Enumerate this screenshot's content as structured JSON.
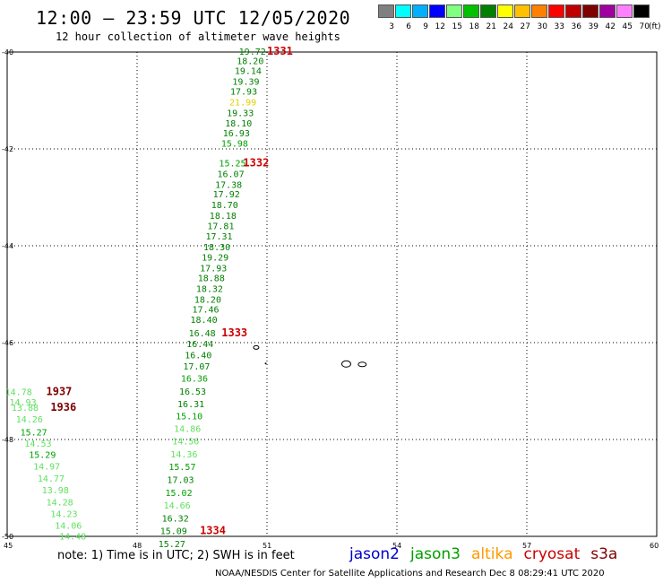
{
  "header": {
    "title": "12:00 – 23:59 UTC 12/05/2020",
    "subtitle": "12 hour collection of altimeter wave heights"
  },
  "scale": {
    "unit": "(ft)",
    "bins": [
      {
        "label": "3",
        "color": "#808080"
      },
      {
        "label": "6",
        "color": "#00ffff"
      },
      {
        "label": "9",
        "color": "#00b0ff"
      },
      {
        "label": "12",
        "color": "#0000ff"
      },
      {
        "label": "15",
        "color": "#80ff80"
      },
      {
        "label": "18",
        "color": "#00c000"
      },
      {
        "label": "21",
        "color": "#008000"
      },
      {
        "label": "24",
        "color": "#ffff00"
      },
      {
        "label": "27",
        "color": "#ffc000"
      },
      {
        "label": "30",
        "color": "#ff8000"
      },
      {
        "label": "33",
        "color": "#ff0000"
      },
      {
        "label": "36",
        "color": "#c00000"
      },
      {
        "label": "39",
        "color": "#800000"
      },
      {
        "label": "42",
        "color": "#a000a0"
      },
      {
        "label": "45",
        "color": "#ff80ff"
      },
      {
        "label": "70",
        "color": "#000000"
      }
    ]
  },
  "axes": {
    "lat_labels": [
      "-40",
      "-42",
      "-44",
      "-46",
      "-48",
      "-50"
    ],
    "lon_labels": [
      "45",
      "48",
      "51",
      "54",
      "57",
      "60"
    ],
    "lon_range": [
      45,
      60
    ],
    "lat_range": [
      -40,
      -50
    ]
  },
  "tracks": [
    {
      "name": "1331",
      "label_color": "#cc0000",
      "label_lon": 51.0,
      "label_lat": -39.98,
      "points": [
        {
          "v": "19.72",
          "lon": 50.6,
          "lat": -39.98,
          "c": "#008000"
        },
        {
          "v": "18.20",
          "lon": 50.55,
          "lat": -40.18,
          "c": "#008000"
        },
        {
          "v": "19.14",
          "lon": 50.5,
          "lat": -40.38,
          "c": "#008000"
        },
        {
          "v": "19.39",
          "lon": 50.45,
          "lat": -40.6,
          "c": "#008000"
        },
        {
          "v": "17.93",
          "lon": 50.4,
          "lat": -40.81,
          "c": "#008000"
        },
        {
          "v": "21.99",
          "lon": 50.38,
          "lat": -41.03,
          "c": "#e0d000"
        },
        {
          "v": "19.33",
          "lon": 50.32,
          "lat": -41.25,
          "c": "#008000"
        },
        {
          "v": "18.10",
          "lon": 50.28,
          "lat": -41.46,
          "c": "#008000"
        },
        {
          "v": "16.93",
          "lon": 50.23,
          "lat": -41.67,
          "c": "#008000"
        },
        {
          "v": "15.98",
          "lon": 50.19,
          "lat": -41.88,
          "c": "#00a000"
        }
      ]
    },
    {
      "name": "1332",
      "label_color": "#cc0000",
      "label_lon": 50.45,
      "label_lat": -42.29,
      "points": [
        {
          "v": "15.25",
          "lon": 50.14,
          "lat": -42.29,
          "c": "#00a000"
        },
        {
          "v": "16.07",
          "lon": 50.1,
          "lat": -42.51,
          "c": "#008000"
        },
        {
          "v": "17.38",
          "lon": 50.05,
          "lat": -42.73,
          "c": "#008000"
        },
        {
          "v": "17.92",
          "lon": 50.0,
          "lat": -42.93,
          "c": "#008000"
        },
        {
          "v": "18.70",
          "lon": 49.96,
          "lat": -43.15,
          "c": "#008000"
        },
        {
          "v": "18.18",
          "lon": 49.92,
          "lat": -43.37,
          "c": "#008000"
        },
        {
          "v": "17.81",
          "lon": 49.87,
          "lat": -43.58,
          "c": "#008000"
        },
        {
          "v": "17.31",
          "lon": 49.83,
          "lat": -43.8,
          "c": "#008000"
        },
        {
          "v": "18.30",
          "lon": 49.78,
          "lat": -44.02,
          "c": "#008000"
        },
        {
          "v": "19.29",
          "lon": 49.74,
          "lat": -44.23,
          "c": "#008000"
        },
        {
          "v": "17.93",
          "lon": 49.7,
          "lat": -44.45,
          "c": "#008000"
        },
        {
          "v": "18.88",
          "lon": 49.65,
          "lat": -44.66,
          "c": "#008000"
        },
        {
          "v": "18.32",
          "lon": 49.61,
          "lat": -44.88,
          "c": "#008000"
        },
        {
          "v": "18.20",
          "lon": 49.57,
          "lat": -45.1,
          "c": "#008000"
        },
        {
          "v": "17.46",
          "lon": 49.52,
          "lat": -45.31,
          "c": "#008000"
        },
        {
          "v": "18.40",
          "lon": 49.48,
          "lat": -45.52,
          "c": "#008000"
        }
      ]
    },
    {
      "name": "1333",
      "label_color": "#cc0000",
      "label_lon": 49.95,
      "label_lat": -45.8,
      "points": [
        {
          "v": "16.48",
          "lon": 49.44,
          "lat": -45.8,
          "c": "#008000"
        },
        {
          "v": "16.44",
          "lon": 49.39,
          "lat": -46.02,
          "c": "#008000"
        },
        {
          "v": "16.40",
          "lon": 49.35,
          "lat": -46.25,
          "c": "#008000"
        },
        {
          "v": "17.07",
          "lon": 49.31,
          "lat": -46.48,
          "c": "#008000"
        },
        {
          "v": "16.36",
          "lon": 49.26,
          "lat": -46.73,
          "c": "#00a000"
        },
        {
          "v": "16.53",
          "lon": 49.22,
          "lat": -47.0,
          "c": "#008000"
        },
        {
          "v": "16.31",
          "lon": 49.18,
          "lat": -47.26,
          "c": "#008000"
        },
        {
          "v": "15.10",
          "lon": 49.14,
          "lat": -47.51,
          "c": "#00a000"
        },
        {
          "v": "14.86",
          "lon": 49.1,
          "lat": -47.77,
          "c": "#60e060"
        },
        {
          "v": "14.56",
          "lon": 49.06,
          "lat": -48.03,
          "c": "#60e060"
        },
        {
          "v": "14.36",
          "lon": 49.02,
          "lat": -48.3,
          "c": "#60e060"
        },
        {
          "v": "15.57",
          "lon": 48.98,
          "lat": -48.56,
          "c": "#00a000"
        },
        {
          "v": "17.03",
          "lon": 48.94,
          "lat": -48.82,
          "c": "#008000"
        },
        {
          "v": "15.02",
          "lon": 48.9,
          "lat": -49.09,
          "c": "#00a000"
        },
        {
          "v": "14.66",
          "lon": 48.86,
          "lat": -49.35,
          "c": "#60e060"
        },
        {
          "v": "16.32",
          "lon": 48.82,
          "lat": -49.62,
          "c": "#008000"
        }
      ]
    },
    {
      "name": "1334",
      "label_color": "#cc0000",
      "label_lon": 49.45,
      "label_lat": -49.88,
      "points": [
        {
          "v": "15.09",
          "lon": 48.78,
          "lat": -49.88,
          "c": "#008000"
        },
        {
          "v": "15.27",
          "lon": 48.74,
          "lat": -50.15,
          "c": "#008000"
        }
      ]
    },
    {
      "name": "1937",
      "label_color": "#800000",
      "label_lon": 45.9,
      "label_lat": -47.01,
      "points": [
        {
          "v": "14.78",
          "lon": 45.2,
          "lat": -47.01,
          "c": "#60e060"
        },
        {
          "v": "14.93",
          "lon": 45.3,
          "lat": -47.22,
          "c": "#60e060"
        }
      ]
    },
    {
      "name": "1936",
      "label_color": "#800000",
      "label_lon": 46.0,
      "label_lat": -47.33,
      "points": [
        {
          "v": "13.88",
          "lon": 45.35,
          "lat": -47.33,
          "c": "#60e060"
        },
        {
          "v": "14.26",
          "lon": 45.45,
          "lat": -47.57,
          "c": "#60e060"
        },
        {
          "v": "15.27",
          "lon": 45.55,
          "lat": -47.84,
          "c": "#00a000"
        },
        {
          "v": "14.53",
          "lon": 45.65,
          "lat": -48.07,
          "c": "#60e060"
        },
        {
          "v": "15.29",
          "lon": 45.75,
          "lat": -48.31,
          "c": "#00a000"
        },
        {
          "v": "14.97",
          "lon": 45.85,
          "lat": -48.55,
          "c": "#60e060"
        },
        {
          "v": "14.77",
          "lon": 45.95,
          "lat": -48.8,
          "c": "#60e060"
        },
        {
          "v": "13.98",
          "lon": 46.05,
          "lat": -49.04,
          "c": "#60e060"
        },
        {
          "v": "14.28",
          "lon": 46.15,
          "lat": -49.29,
          "c": "#60e060"
        },
        {
          "v": "14.23",
          "lon": 46.25,
          "lat": -49.53,
          "c": "#60e060"
        },
        {
          "v": "14.06",
          "lon": 46.35,
          "lat": -49.77,
          "c": "#60e060"
        },
        {
          "v": "14.48",
          "lon": 46.45,
          "lat": -49.99,
          "c": "#60e060"
        }
      ]
    }
  ],
  "footer": {
    "note": "note: 1) Time is in UTC; 2) SWH is in feet",
    "satellites": [
      {
        "name": "jason2",
        "color": "#0000cc"
      },
      {
        "name": "jason3",
        "color": "#00a000"
      },
      {
        "name": "altika",
        "color": "#ff9900"
      },
      {
        "name": "cryosat",
        "color": "#cc0000"
      },
      {
        "name": "s3a",
        "color": "#800000"
      }
    ],
    "credit": "NOAA/NESDIS Center for Satellite Applications and Research    Dec  8 08:29:41 UTC 2020"
  }
}
